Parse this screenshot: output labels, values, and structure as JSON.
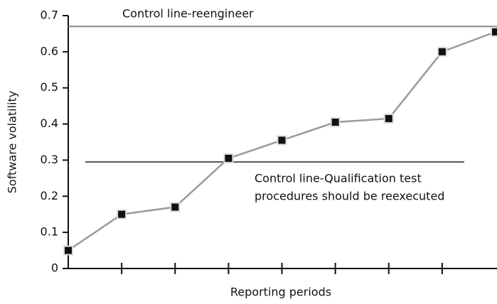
{
  "chart_data": {
    "type": "line",
    "y_label": "Software volatility",
    "x_label": "Reporting periods",
    "categories": [
      null,
      null,
      null,
      null,
      null,
      null,
      null,
      null,
      null
    ],
    "series": [
      {
        "name": null,
        "color": "#9a9a9a",
        "values": [
          0.05,
          0.15,
          0.17,
          0.305,
          0.355,
          0.405,
          0.415,
          0.6,
          0.655
        ]
      }
    ],
    "ylim": [
      0,
      0.7
    ],
    "yticks": [
      0,
      0.1,
      0.2,
      0.3,
      0.4,
      0.5,
      0.6,
      0.7
    ],
    "grid": false,
    "reference_lines": [
      {
        "value": 0.67,
        "color": "#8a8a8a",
        "label": [
          "Control line-reengineer"
        ]
      },
      {
        "value": 0.295,
        "color": "#5a5a5a",
        "label": [
          "Control line-Qualification test",
          "procedures should be reexecuted"
        ]
      }
    ]
  }
}
